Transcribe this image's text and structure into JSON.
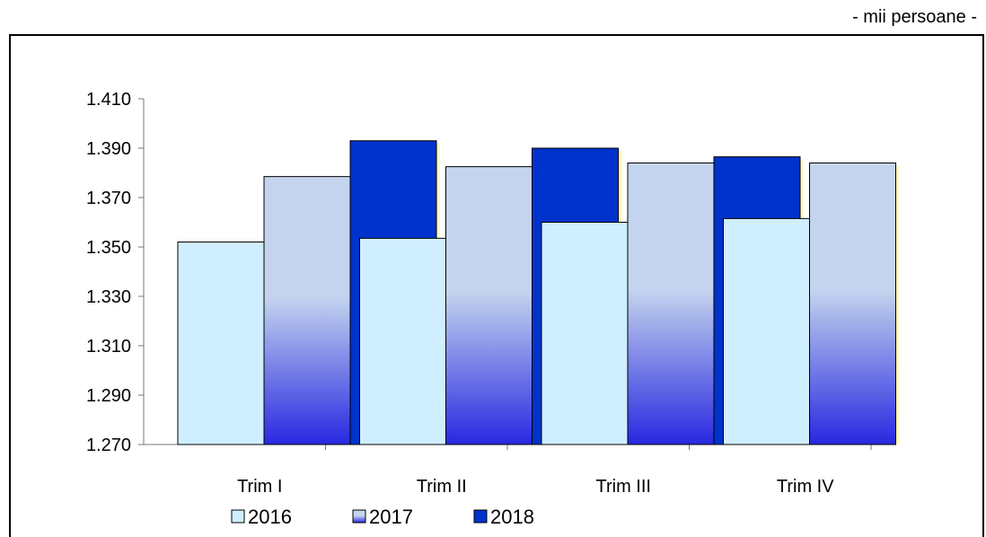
{
  "unit_note": "- mii persoane -",
  "colors": {
    "s2016": "#cfeeff",
    "s2017_top": "#c4d4ee",
    "s2017_bottom": "#2828e0",
    "s2018": "#0033cc",
    "shadow": "#fff9c0",
    "axis": "#777777"
  },
  "chart_data": {
    "type": "bar",
    "categories": [
      "Trim I",
      "Trim II",
      "Trim III",
      "Trim IV"
    ],
    "series": [
      {
        "name": "2016",
        "values": [
          1352,
          1353.5,
          1360,
          1361.5
        ]
      },
      {
        "name": "2017",
        "values": [
          1378.5,
          1382.5,
          1384,
          1384
        ]
      },
      {
        "name": "2018",
        "values": [
          1393,
          1390,
          1386.5,
          null
        ]
      }
    ],
    "ylim": [
      1270,
      1410
    ],
    "yticks": [
      "1.270",
      "1.290",
      "1.310",
      "1.330",
      "1.350",
      "1.370",
      "1.390",
      "1.410"
    ],
    "legend_position": "bottom"
  }
}
